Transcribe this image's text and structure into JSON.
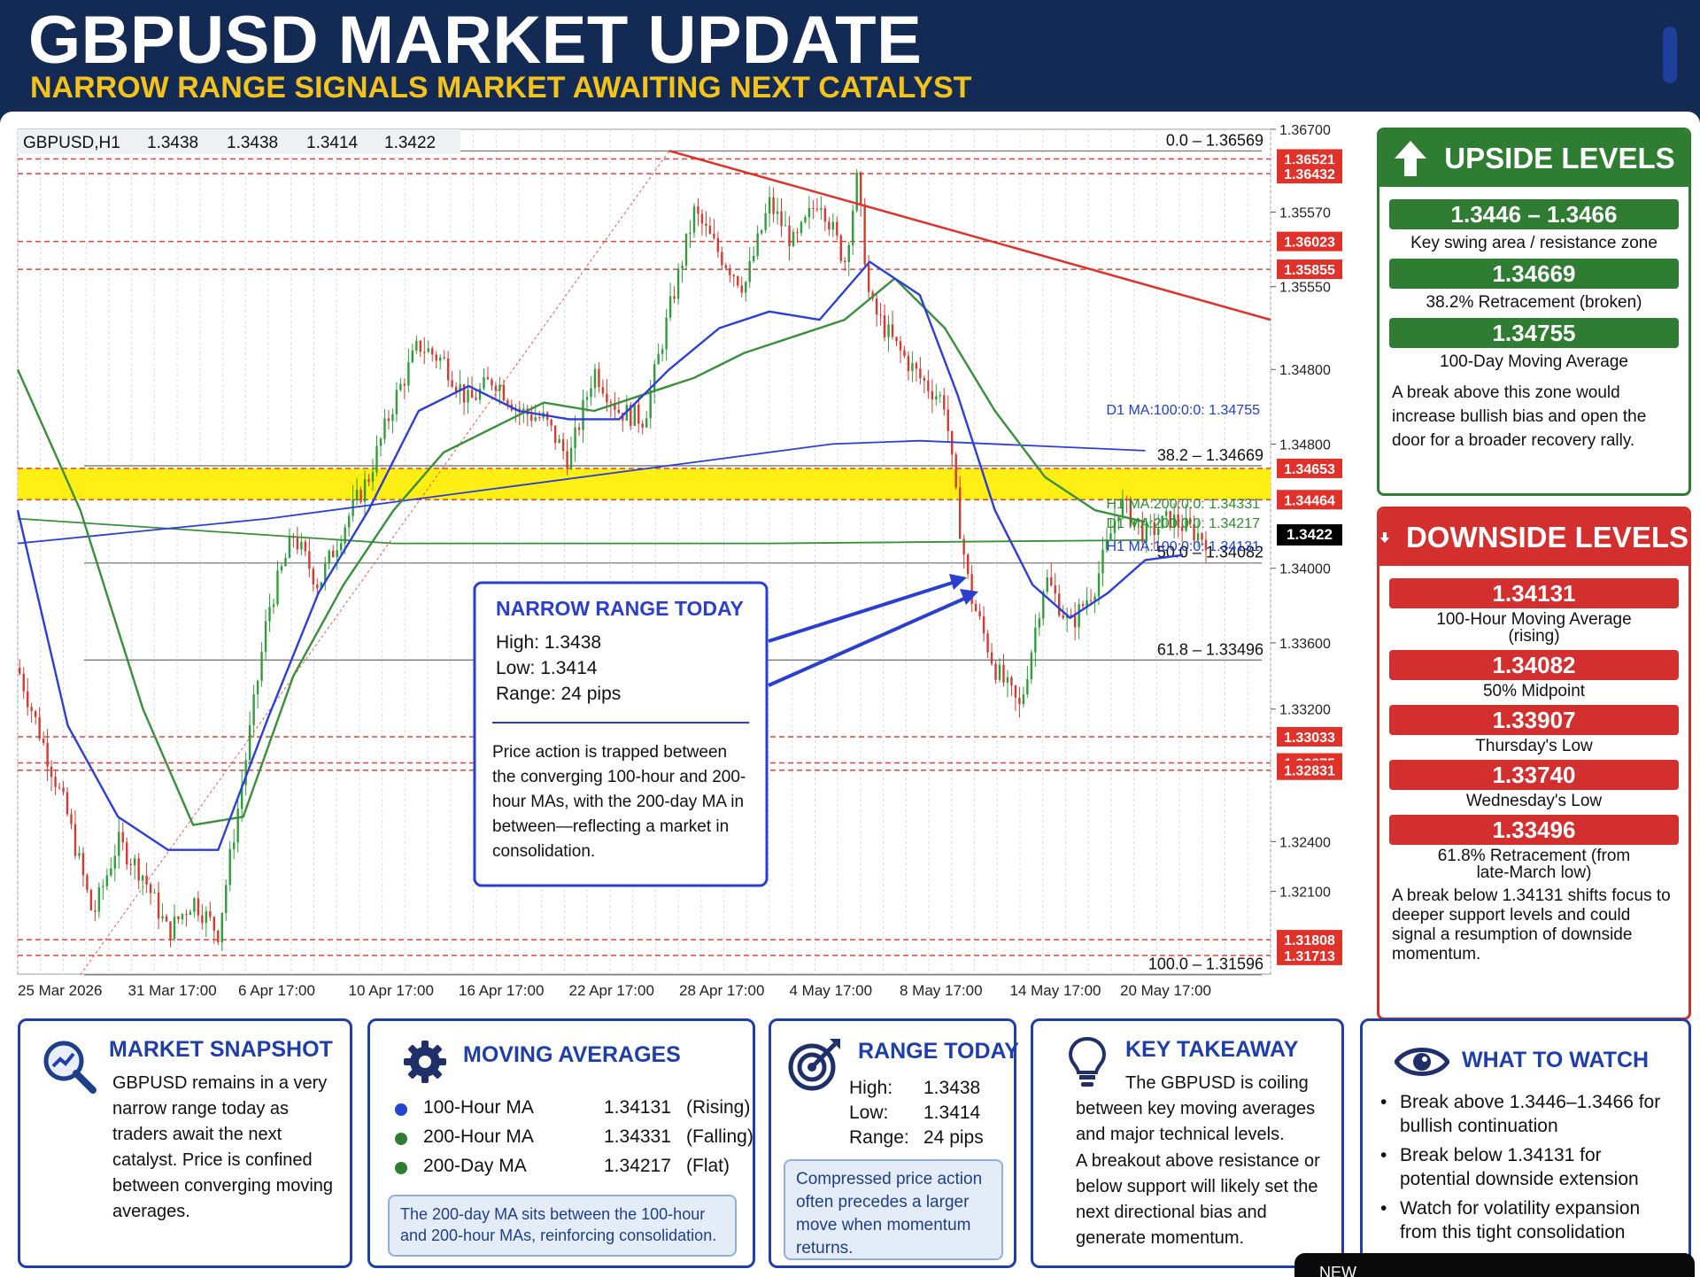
{
  "header": {
    "title": "GBPUSD MARKET UPDATE",
    "subtitle": "NARROW RANGE SIGNALS MARKET AWAITING NEXT CATALYST"
  },
  "chart_data": {
    "type": "candlestick",
    "symbol_label": "GBPUSD,H1",
    "ohlc_header": [
      "1.3438",
      "1.3438",
      "1.3414",
      "1.3422"
    ],
    "ylim": [
      1.316,
      1.367
    ],
    "y_axis_ticks": [
      "1.36700",
      "1.35570",
      "1.35550",
      "1.34800",
      "1.34800",
      "1.34000",
      "1.33600",
      "1.33200",
      "1.32400",
      "1.32100"
    ],
    "x_axis_ticks": [
      "25 Mar 2026",
      "31 Mar 17:00",
      "6 Apr 17:00",
      "10 Apr 17:00",
      "16 Apr 17:00",
      "22 Apr 17:00",
      "28 Apr 17:00",
      "4 May 17:00",
      "8 May 17:00",
      "14 May 17:00",
      "20 May 17:00"
    ],
    "current_price": "1.3422",
    "red_levels": [
      "1.36521",
      "1.36432",
      "1.36023",
      "1.35855",
      "1.34653",
      "1.34464",
      "1.33033",
      "1.32875",
      "1.32831",
      "1.31808",
      "1.31713"
    ],
    "fib_levels": [
      {
        "label": "0.0 – 1.36569",
        "value": 1.36569
      },
      {
        "label": "38.2 – 1.34669",
        "value": 1.34669
      },
      {
        "label": "50.0 – 1.34082",
        "value": 1.34082
      },
      {
        "label": "61.8 – 1.33496",
        "value": 1.33496
      },
      {
        "label": "100.0 – 1.31596",
        "value": 1.31596
      }
    ],
    "ma_labels": [
      {
        "text": "D1 MA:100:0:0:  1.34755",
        "color": "#1f3fcc",
        "value": 1.34755
      },
      {
        "text": "H1 MA:200:0:0:  1.34331",
        "color": "#2e8b2e",
        "value": 1.34331
      },
      {
        "text": "D1 MA:200:0:0:  1.34217",
        "color": "#2e8b2e",
        "value": 1.34217
      },
      {
        "text": "H1 MA:100:0:0:  1.34131",
        "color": "#1f3fcc",
        "value": 1.34131
      }
    ],
    "resistance_zone": [
      1.34464,
      1.34653
    ],
    "price_path": [
      [
        0,
        1.3345
      ],
      [
        0.02,
        1.33
      ],
      [
        0.04,
        1.3255
      ],
      [
        0.06,
        1.3195
      ],
      [
        0.08,
        1.324
      ],
      [
        0.1,
        1.322
      ],
      [
        0.12,
        1.3185
      ],
      [
        0.14,
        1.3205
      ],
      [
        0.16,
        1.3185
      ],
      [
        0.18,
        1.328
      ],
      [
        0.2,
        1.338
      ],
      [
        0.22,
        1.3425
      ],
      [
        0.24,
        1.3395
      ],
      [
        0.26,
        1.343
      ],
      [
        0.28,
        1.346
      ],
      [
        0.3,
        1.3505
      ],
      [
        0.32,
        1.354
      ],
      [
        0.34,
        1.353
      ],
      [
        0.36,
        1.3505
      ],
      [
        0.38,
        1.352
      ],
      [
        0.4,
        1.35
      ],
      [
        0.42,
        1.3495
      ],
      [
        0.44,
        1.347
      ],
      [
        0.46,
        1.3525
      ],
      [
        0.48,
        1.35
      ],
      [
        0.5,
        1.3495
      ],
      [
        0.52,
        1.356
      ],
      [
        0.54,
        1.362
      ],
      [
        0.56,
        1.3595
      ],
      [
        0.58,
        1.3575
      ],
      [
        0.6,
        1.3625
      ],
      [
        0.62,
        1.36
      ],
      [
        0.64,
        1.363
      ],
      [
        0.66,
        1.359
      ],
      [
        0.67,
        1.364
      ],
      [
        0.68,
        1.3565
      ],
      [
        0.7,
        1.354
      ],
      [
        0.72,
        1.352
      ],
      [
        0.74,
        1.3505
      ],
      [
        0.75,
        1.344
      ],
      [
        0.76,
        1.339
      ],
      [
        0.78,
        1.3345
      ],
      [
        0.8,
        1.332
      ],
      [
        0.82,
        1.34
      ],
      [
        0.84,
        1.337
      ],
      [
        0.86,
        1.3395
      ],
      [
        0.88,
        1.3445
      ],
      [
        0.9,
        1.3425
      ],
      [
        0.92,
        1.3435
      ],
      [
        0.95,
        1.3422
      ]
    ],
    "ma_100h_path": [
      [
        0,
        1.344
      ],
      [
        0.04,
        1.331
      ],
      [
        0.08,
        1.3255
      ],
      [
        0.12,
        1.3235
      ],
      [
        0.16,
        1.3235
      ],
      [
        0.2,
        1.3315
      ],
      [
        0.24,
        1.339
      ],
      [
        0.28,
        1.344
      ],
      [
        0.32,
        1.35
      ],
      [
        0.36,
        1.3515
      ],
      [
        0.4,
        1.35
      ],
      [
        0.44,
        1.3495
      ],
      [
        0.48,
        1.3495
      ],
      [
        0.52,
        1.3525
      ],
      [
        0.56,
        1.355
      ],
      [
        0.6,
        1.356
      ],
      [
        0.64,
        1.3555
      ],
      [
        0.68,
        1.359
      ],
      [
        0.72,
        1.357
      ],
      [
        0.75,
        1.351
      ],
      [
        0.78,
        1.344
      ],
      [
        0.81,
        1.3395
      ],
      [
        0.84,
        1.3375
      ],
      [
        0.87,
        1.339
      ],
      [
        0.9,
        1.341
      ],
      [
        0.93,
        1.3413
      ]
    ],
    "ma_200h_path": [
      [
        0,
        1.3525
      ],
      [
        0.05,
        1.344
      ],
      [
        0.1,
        1.332
      ],
      [
        0.14,
        1.325
      ],
      [
        0.18,
        1.3255
      ],
      [
        0.22,
        1.334
      ],
      [
        0.26,
        1.3395
      ],
      [
        0.3,
        1.344
      ],
      [
        0.34,
        1.3475
      ],
      [
        0.38,
        1.349
      ],
      [
        0.42,
        1.3505
      ],
      [
        0.46,
        1.35
      ],
      [
        0.5,
        1.351
      ],
      [
        0.54,
        1.352
      ],
      [
        0.58,
        1.3535
      ],
      [
        0.62,
        1.3545
      ],
      [
        0.66,
        1.3555
      ],
      [
        0.7,
        1.358
      ],
      [
        0.74,
        1.355
      ],
      [
        0.78,
        1.35
      ],
      [
        0.82,
        1.346
      ],
      [
        0.86,
        1.344
      ],
      [
        0.9,
        1.3433
      ]
    ],
    "ma_100d_path": [
      [
        0,
        1.342
      ],
      [
        0.2,
        1.3435
      ],
      [
        0.4,
        1.3455
      ],
      [
        0.55,
        1.347
      ],
      [
        0.65,
        1.348
      ],
      [
        0.72,
        1.3482
      ],
      [
        0.9,
        1.3476
      ]
    ],
    "ma_200d_path": [
      [
        0,
        1.3435
      ],
      [
        0.3,
        1.342
      ],
      [
        0.6,
        1.342
      ],
      [
        0.9,
        1.3422
      ]
    ],
    "trendline": [
      [
        0.52,
        1.3657
      ],
      [
        1.0,
        1.3555
      ]
    ],
    "annotation": {
      "title": "NARROW RANGE TODAY",
      "high": "High: 1.3438",
      "low": "Low:  1.3414",
      "range": "Range: 24 pips",
      "text": "Price action is trapped between the converging 100-hour and 200-hour MAs, with the 200-day MA in between—reflecting a market in consolidation."
    }
  },
  "upside": {
    "title": "UPSIDE LEVELS",
    "levels": [
      {
        "value": "1.3446 – 1.3466",
        "desc": "Key swing area / resistance zone"
      },
      {
        "value": "1.34669",
        "desc": "38.2% Retracement (broken)"
      },
      {
        "value": "1.34755",
        "desc": "100-Day Moving Average"
      }
    ],
    "note": "A break above this zone would increase bullish bias and open the door for a broader recovery rally."
  },
  "downside": {
    "title": "DOWNSIDE LEVELS",
    "levels": [
      {
        "value": "1.34131",
        "desc": "100-Hour Moving Average (rising)"
      },
      {
        "value": "1.34082",
        "desc": "50% Midpoint"
      },
      {
        "value": "1.33907",
        "desc": "Thursday's Low"
      },
      {
        "value": "1.33740",
        "desc": "Wednesday's Low"
      },
      {
        "value": "1.33496",
        "desc": "61.8% Retracement (from late-March low)"
      }
    ],
    "note": "A break below 1.34131 shifts focus to deeper support levels and could signal a resumption of downside momentum."
  },
  "snapshot": {
    "title": "MARKET SNAPSHOT",
    "text": "GBPUSD remains in a very narrow range today as traders await the next catalyst. Price is confined between converging moving averages."
  },
  "moving_averages": {
    "title": "MOVING AVERAGES",
    "rows": [
      {
        "name": "100-Hour MA",
        "value": "1.34131",
        "state": "(Rising)",
        "color": "#2244cc"
      },
      {
        "name": "200-Hour MA",
        "value": "1.34331",
        "state": "(Falling)",
        "color": "#2e7d32"
      },
      {
        "name": "200-Day MA",
        "value": "1.34217",
        "state": "(Flat)",
        "color": "#2e7d32"
      }
    ],
    "note": "The 200-day MA sits between the 100-hour and 200-hour MAs, reinforcing consolidation."
  },
  "range_today": {
    "title": "RANGE TODAY",
    "high_label": "High:",
    "high": "1.3438",
    "low_label": "Low:",
    "low": "1.3414",
    "range_label": "Range:",
    "range": "24 pips",
    "note": "Compressed price action often precedes a larger move when momentum returns."
  },
  "takeaway": {
    "title": "KEY TAKEAWAY",
    "p1": "The GBPUSD is coiling between key moving averages and major technical levels.",
    "p2": "A breakout above resistance or below support will likely set the next directional bias and generate momentum."
  },
  "watch": {
    "title": "WHAT TO WATCH",
    "items": [
      "Break above 1.3446–1.3466 for bullish continuation",
      "Break below 1.34131 for potential downside extension",
      "Watch for volatility expansion from this tight consolidation"
    ]
  },
  "footer_tab": "NEW"
}
